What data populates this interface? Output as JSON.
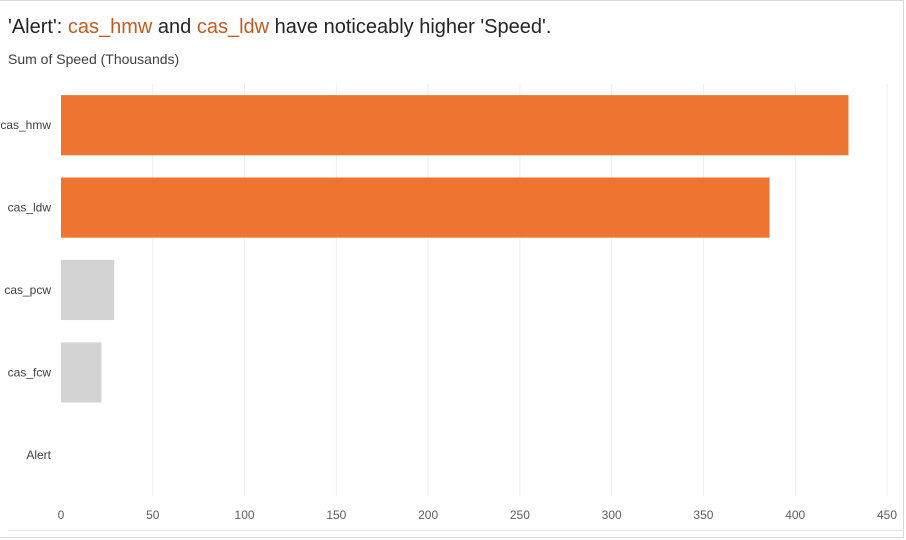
{
  "title": {
    "part1": "'Alert': ",
    "highlight1": "cas_hmw",
    "part2": " and ",
    "highlight2": "cas_ldw",
    "part3": " have noticeably higher 'Speed'."
  },
  "subtitle": "Sum of Speed (Thousands)",
  "colors": {
    "highlight": "#ed7431",
    "muted": "#d3d3d3",
    "title_highlight": "#c45a1e",
    "grid": "#eeeeee"
  },
  "chart_data": {
    "type": "bar",
    "orientation": "horizontal",
    "categories": [
      "cas_hmw",
      "cas_ldw",
      "cas_pcw",
      "cas_fcw",
      "Alert"
    ],
    "values": [
      429,
      386,
      29,
      22,
      0
    ],
    "highlighted": [
      true,
      true,
      false,
      false,
      false
    ],
    "xlim": [
      0,
      450
    ],
    "xticks": [
      0,
      50,
      100,
      150,
      200,
      250,
      300,
      350,
      400,
      450
    ],
    "grid": true
  }
}
